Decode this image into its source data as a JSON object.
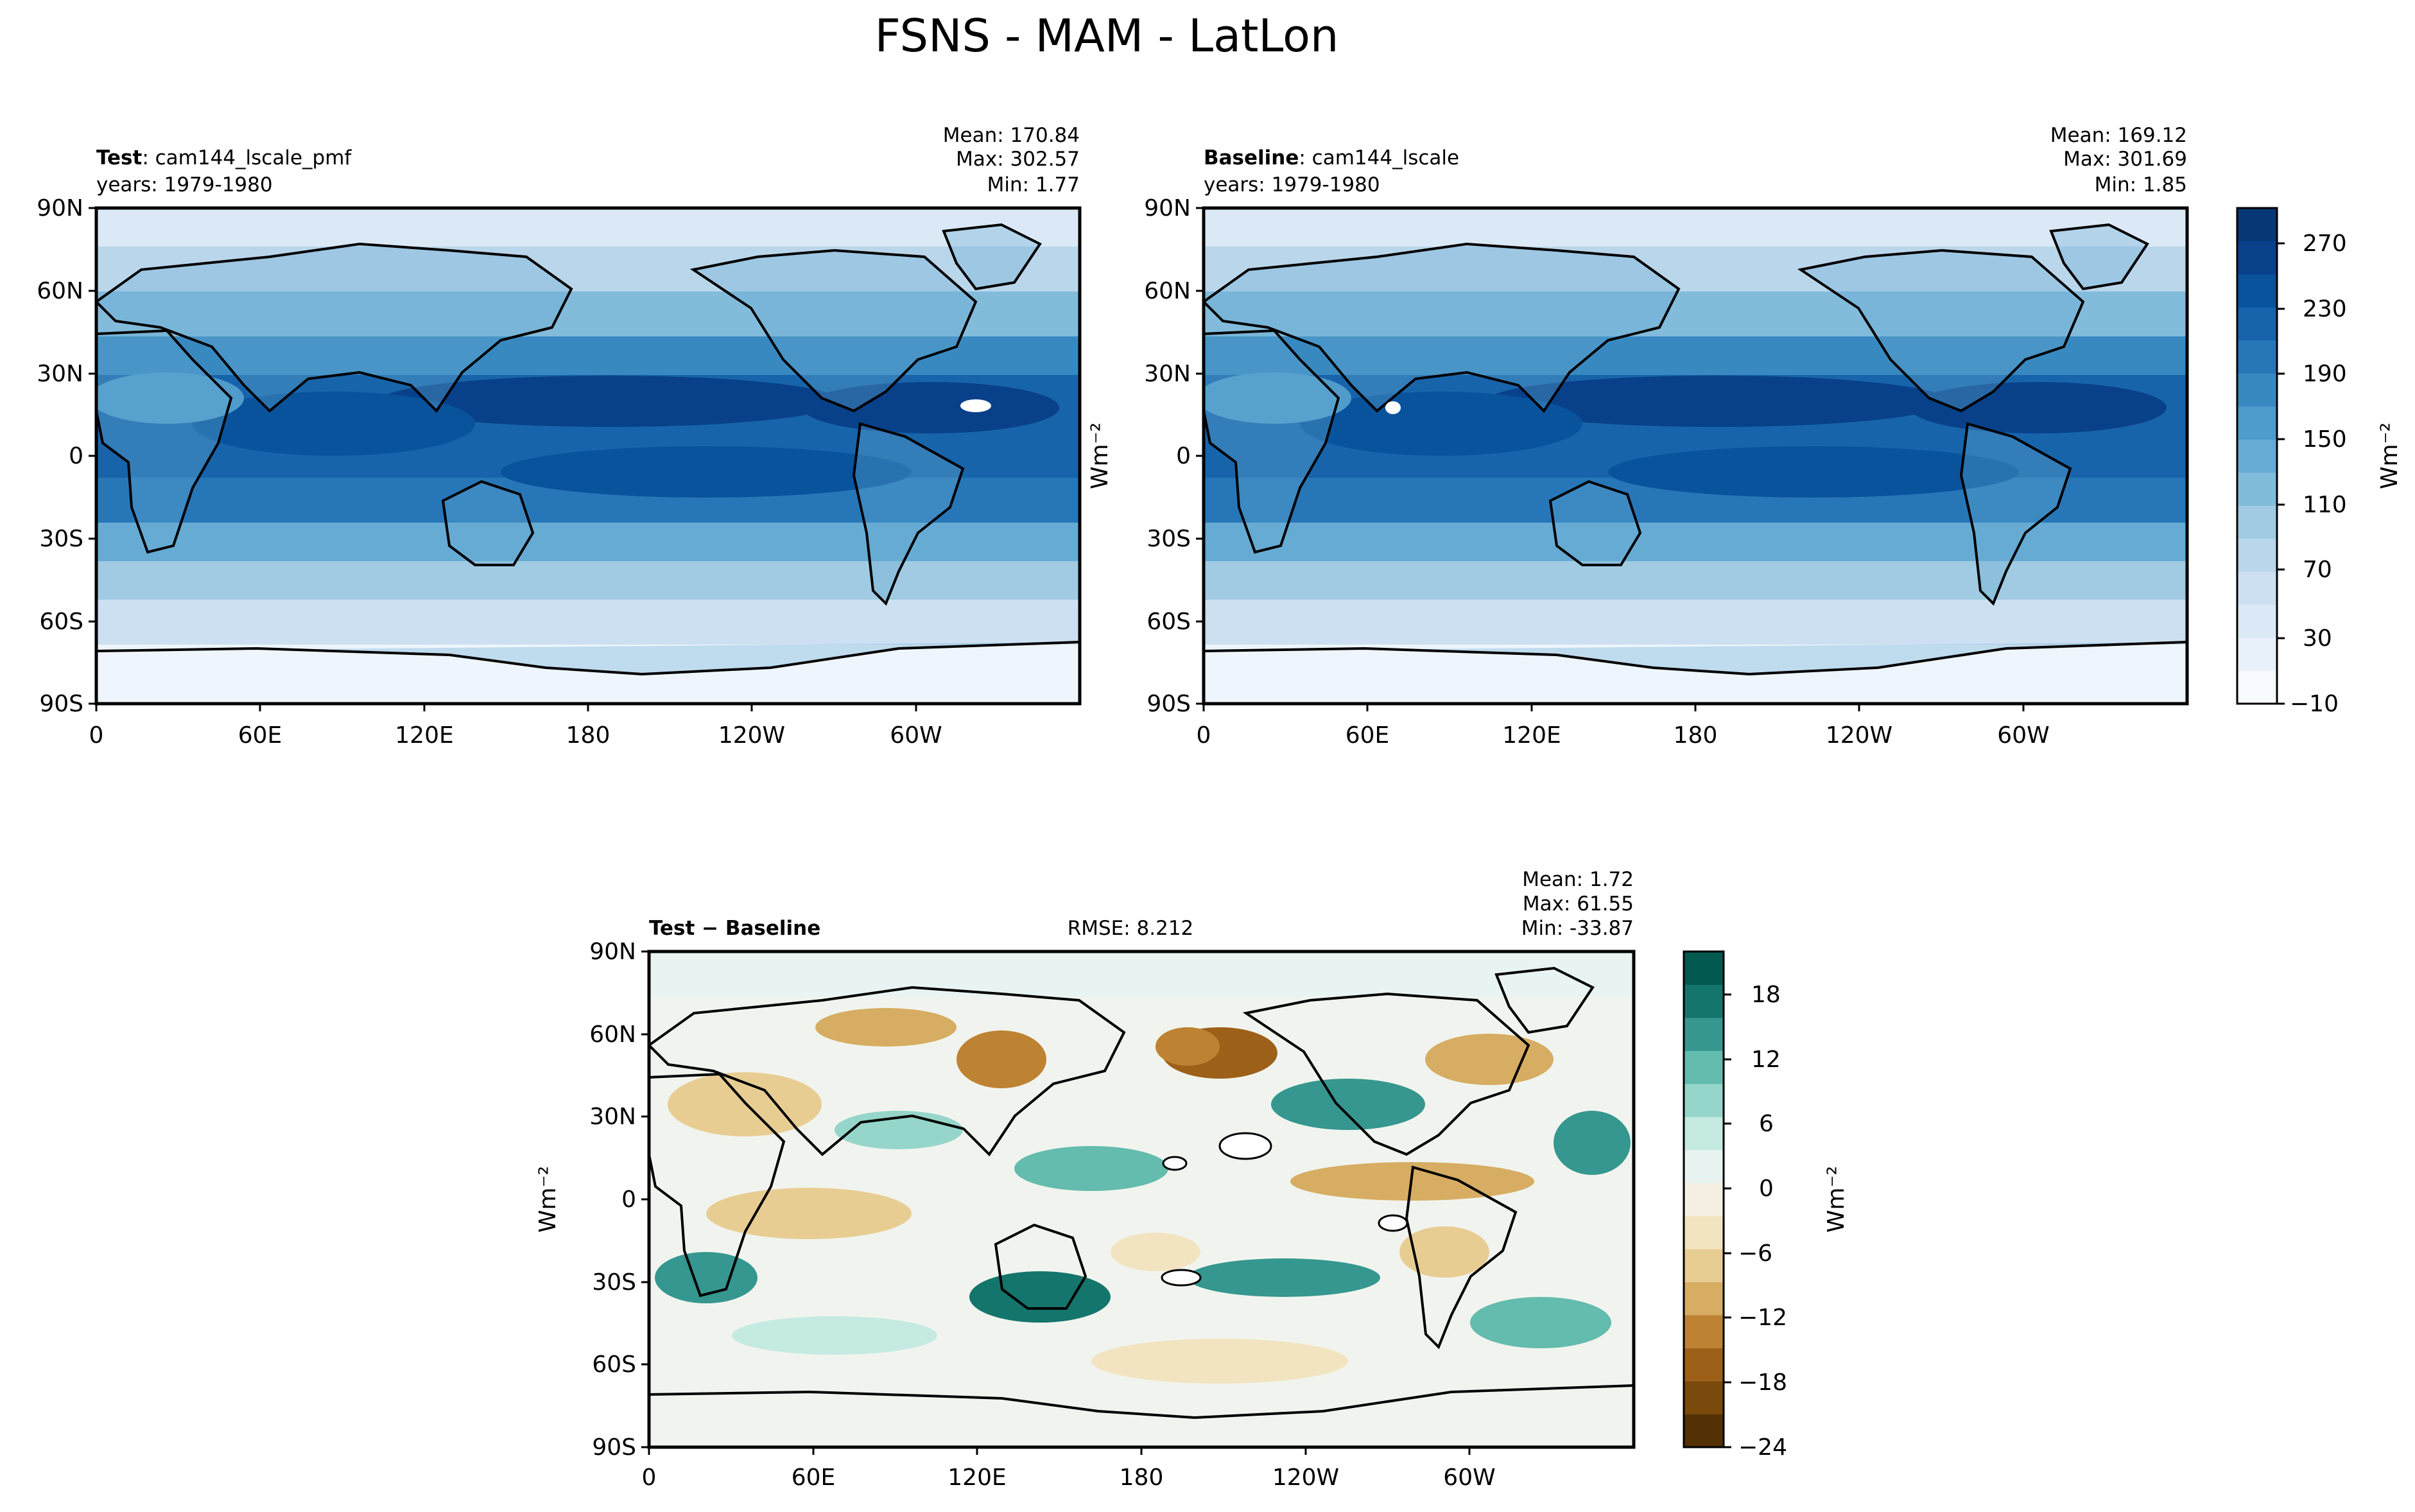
{
  "figure": {
    "title": "FSNS - MAM - LatLon"
  },
  "chart_data": [
    {
      "id": "test",
      "type": "heatmap",
      "label_bold": "Test",
      "label_rest": ": cam144_lscale_pmf",
      "years": "years: 1979-1980",
      "stats": [
        "Mean: 170.84",
        "Max: 302.57",
        "Min:  1.77"
      ],
      "x_ticks": [
        "0",
        "60E",
        "120E",
        "180",
        "120W",
        "60W"
      ],
      "y_ticks": [
        "90N",
        "60N",
        "30N",
        "0",
        "30S",
        "60S",
        "90S"
      ],
      "xlim": [
        0,
        360
      ],
      "ylim": [
        -90,
        90
      ],
      "colormap": "Blues"
    },
    {
      "id": "baseline",
      "type": "heatmap",
      "label_bold": "Baseline",
      "label_rest": ": cam144_lscale",
      "years": "years: 1979-1980",
      "stats": [
        "Mean: 169.12",
        "Max: 301.69",
        "Min:  1.85"
      ],
      "ylabel": "Wm⁻²",
      "x_ticks": [
        "0",
        "60E",
        "120E",
        "180",
        "120W",
        "60W"
      ],
      "y_ticks": [
        "90N",
        "60N",
        "30N",
        "0",
        "30S",
        "60S",
        "90S"
      ],
      "xlim": [
        0,
        360
      ],
      "ylim": [
        -90,
        90
      ],
      "colormap": "Blues"
    },
    {
      "id": "diff",
      "type": "heatmap",
      "label_bold": "Test − Baseline",
      "rmse": "RMSE: 8.212",
      "stats": [
        "Mean:  1.72",
        "Max: 61.55",
        "Min: -33.87"
      ],
      "ylabel": "Wm⁻²",
      "x_ticks": [
        "0",
        "60E",
        "120E",
        "180",
        "120W",
        "60W"
      ],
      "y_ticks": [
        "90N",
        "60N",
        "30N",
        "0",
        "30S",
        "60S",
        "90S"
      ],
      "xlim": [
        0,
        360
      ],
      "ylim": [
        -90,
        90
      ],
      "colormap": "BrBG"
    }
  ],
  "colorbar_top": {
    "ticks": [
      "270",
      "230",
      "190",
      "150",
      "110",
      "70",
      "30",
      "−10"
    ],
    "label": "Wm⁻²",
    "levels": [
      -10,
      10,
      30,
      50,
      70,
      90,
      110,
      130,
      150,
      170,
      190,
      210,
      230,
      250,
      270,
      290
    ],
    "colors": [
      "#f7fbff",
      "#e8f1fa",
      "#dbe9f6",
      "#cde0f1",
      "#bad6eb",
      "#a0cbe2",
      "#83bbdb",
      "#66abd4",
      "#4f9bcb",
      "#3989c1",
      "#2777b8",
      "#1764ab",
      "#09539d",
      "#08418a",
      "#083776"
    ]
  },
  "colorbar_diff": {
    "ticks": [
      "18",
      "12",
      "6",
      "0",
      "−6",
      "−12",
      "−18",
      "−24"
    ],
    "label": "Wm⁻²",
    "levels": [
      -24,
      -21,
      -18,
      -15,
      -12,
      -9,
      -6,
      -3,
      0,
      3,
      6,
      9,
      12,
      15,
      18,
      21
    ],
    "colors": [
      "#543005",
      "#7a4a0c",
      "#9d6018",
      "#bd8232",
      "#d6ad62",
      "#e8cd93",
      "#f3e4c1",
      "#f6f0e4",
      "#e8f4f1",
      "#c5eae2",
      "#96d6ca",
      "#63bcad",
      "#35978f",
      "#14756c",
      "#01594f"
    ]
  }
}
